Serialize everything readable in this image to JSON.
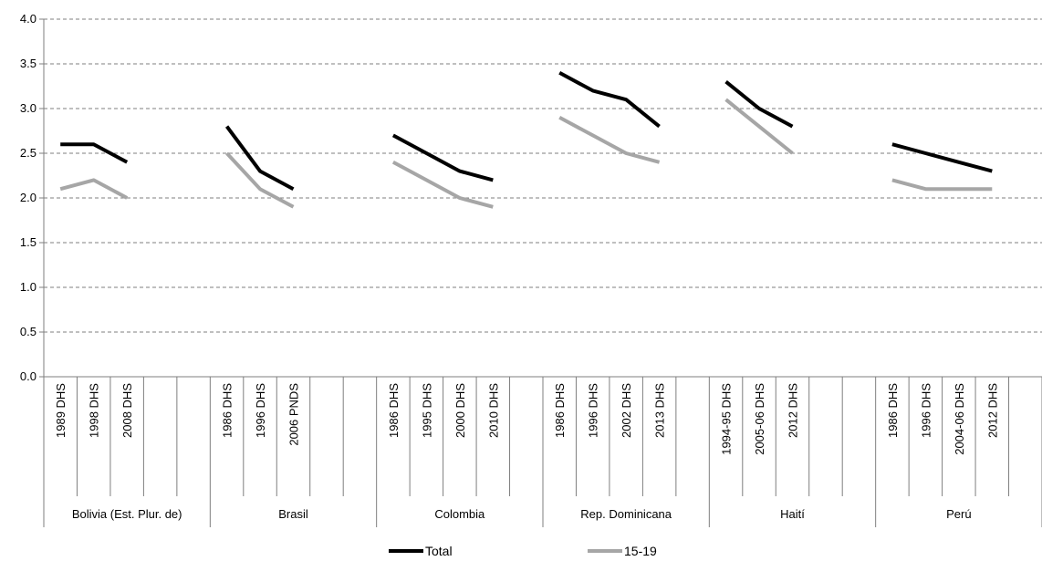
{
  "chart_data": {
    "type": "line",
    "ylim": [
      0,
      4.0
    ],
    "yticks": [
      "0.0",
      "0.5",
      "1.0",
      "1.5",
      "2.0",
      "2.5",
      "3.0",
      "3.5",
      "4.0"
    ],
    "grid": true,
    "legend_position": "bottom",
    "groups": [
      {
        "name": "Bolivia (Est. Plur. de)",
        "categories": [
          "1989 DHS",
          "1998 DHS",
          "2008 DHS",
          ""
        ],
        "total": [
          2.6,
          2.6,
          2.4,
          null
        ],
        "age_15_19": [
          2.1,
          2.2,
          2.0,
          null
        ]
      },
      {
        "name": "Brasil",
        "categories": [
          "1986 DHS",
          "1996 DHS",
          "2006 PNDS",
          ""
        ],
        "total": [
          2.8,
          2.3,
          2.1,
          null
        ],
        "age_15_19": [
          2.5,
          2.1,
          1.9,
          null
        ]
      },
      {
        "name": "Colombia",
        "categories": [
          "1986 DHS",
          "1995 DHS",
          "2000 DHS",
          "2010 DHS"
        ],
        "total": [
          2.7,
          2.5,
          2.3,
          2.2
        ],
        "age_15_19": [
          2.4,
          2.2,
          2.0,
          1.9
        ]
      },
      {
        "name": "Rep. Dominicana",
        "categories": [
          "1986 DHS",
          "1996 DHS",
          "2002 DHS",
          "2013 DHS"
        ],
        "total": [
          3.4,
          3.2,
          3.1,
          2.8
        ],
        "age_15_19": [
          2.9,
          2.7,
          2.5,
          2.4
        ]
      },
      {
        "name": "Haití",
        "categories": [
          "1994-95 DHS",
          "2005-06 DHS",
          "2012 DHS",
          ""
        ],
        "total": [
          3.3,
          3.0,
          2.8,
          null
        ],
        "age_15_19": [
          3.1,
          2.8,
          2.5,
          null
        ]
      },
      {
        "name": "Perú",
        "categories": [
          "1986 DHS",
          "1996 DHS",
          "2004-06 DHS",
          "2012 DHS"
        ],
        "total": [
          2.6,
          2.5,
          2.4,
          2.3
        ],
        "age_15_19": [
          2.2,
          2.1,
          2.1,
          2.1
        ]
      }
    ],
    "series": [
      {
        "name": "Total",
        "key": "total",
        "color": "#000000"
      },
      {
        "name": "15-19",
        "key": "age_15_19",
        "color": "#a6a6a6"
      }
    ]
  }
}
